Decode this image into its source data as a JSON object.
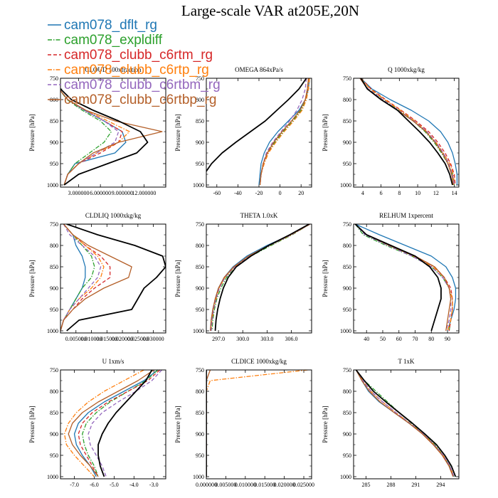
{
  "chart_data": {
    "title": "Large-scale VAR at205E,20N",
    "type": "line",
    "legend": [
      {
        "name": "cam078_dflt_rg",
        "color": "#1f77b4",
        "dash": "solid"
      },
      {
        "name": "cam078_expldiff",
        "color": "#2ca02c",
        "dash": "dashdot"
      },
      {
        "name": "cam078_clubb_c6rtm_rg",
        "color": "#d62728",
        "dash": "dashed"
      },
      {
        "name": "cam078_clubb_c6rtp_rg",
        "color": "#ff7f0e",
        "dash": "dashdot"
      },
      {
        "name": "cam078_clubb_c6rtbm_rg",
        "color": "#9467bd",
        "dash": "dashed"
      },
      {
        "name": "cam078_clubb_c6rtbp_rg",
        "color": "#b45f28",
        "dash": "solid"
      }
    ],
    "reference_color": "#000000",
    "ylabel": "Pressure [hPa]",
    "pressure_levels": [
      750,
      775,
      800,
      825,
      850,
      875,
      900,
      925,
      950,
      975,
      1000
    ],
    "panels": [
      {
        "title": "CLOUD 100xfraction",
        "xlim": [
          0.5,
          15
        ],
        "xticks": [
          3.0,
          6.0,
          9.0,
          12.0
        ],
        "xticklabels": [
          "3.000000",
          "6.000000",
          "9.000000",
          "12.000000"
        ],
        "yticks": [
          750,
          800,
          850,
          900,
          950,
          1000
        ],
        "reference": [
          0,
          0.5,
          2,
          5,
          8.5,
          11.5,
          12.5,
          11,
          7,
          3,
          1
        ],
        "series": [
          [
            0,
            0.3,
            1.5,
            3.8,
            6.5,
            9,
            9.5,
            8,
            2.5,
            1.5,
            1
          ],
          [
            0,
            0.3,
            1.4,
            3.5,
            6,
            7.5,
            6.5,
            4.5,
            2.5,
            1.5,
            1
          ],
          [
            0,
            0.3,
            1.5,
            3.8,
            6.5,
            9,
            8.5,
            6,
            3,
            1.5,
            1
          ],
          [
            0,
            0.3,
            1.5,
            4,
            7,
            10,
            8.5,
            5.5,
            3,
            1.5,
            1
          ],
          [
            0,
            0.3,
            1.5,
            3.8,
            6.5,
            8.5,
            8,
            5.5,
            3,
            1.5,
            1
          ],
          [
            0,
            0.3,
            1.5,
            4,
            8,
            14.5,
            8.5,
            5,
            3,
            1.5,
            1
          ]
        ]
      },
      {
        "title": "OMEGA  864xPa/s",
        "xlim": [
          -70,
          30
        ],
        "xticks": [
          -60,
          -40,
          -20,
          0,
          20
        ],
        "xticklabels": [
          "-60",
          "-40",
          "-20",
          "0",
          "20"
        ],
        "yticks": [
          750,
          800,
          850,
          900,
          950,
          1000
        ],
        "reference": [
          25,
          18,
          8,
          -3,
          -14,
          -28,
          -42,
          -55,
          -65,
          -72,
          -78
        ],
        "series": [
          [
            28,
            27,
            24,
            18,
            8,
            -2,
            -10,
            -15,
            -18,
            -19,
            -20
          ],
          [
            28,
            27,
            25,
            20,
            12,
            3,
            -5,
            -12,
            -16,
            -18,
            -19
          ],
          [
            27,
            26,
            24,
            19,
            11,
            2,
            -6,
            -12,
            -16,
            -18,
            -19
          ],
          [
            28,
            27,
            25,
            21,
            13,
            4,
            -4,
            -11,
            -15,
            -18,
            -19
          ],
          [
            25,
            24,
            21,
            16,
            9,
            1,
            -7,
            -13,
            -16,
            -18,
            -19
          ],
          [
            27,
            26,
            24,
            19,
            11,
            2,
            -6,
            -12,
            -16,
            -18,
            -19
          ]
        ]
      },
      {
        "title": "Q  1000xkg/kg",
        "xlim": [
          3,
          14.5
        ],
        "xticks": [
          4,
          6,
          8,
          10,
          12,
          14
        ],
        "xticklabels": [
          "4",
          "6",
          "8",
          "10",
          "12",
          "14"
        ],
        "yticks": [
          750,
          800,
          850,
          900,
          950,
          1000
        ],
        "reference": [
          3.8,
          4.5,
          6,
          7.8,
          9,
          10.2,
          11.3,
          12.2,
          13,
          13.5,
          13.8
        ],
        "series": [
          [
            3.8,
            5,
            7,
            9.3,
            11.2,
            12.5,
            13.3,
            13.8,
            14.1,
            14.3,
            14.3
          ],
          [
            3.8,
            4.8,
            6.3,
            8,
            9.5,
            10.8,
            11.8,
            12.6,
            13.3,
            13.8,
            14
          ],
          [
            3.8,
            4.9,
            6.5,
            8.2,
            9.8,
            11.2,
            12.2,
            13,
            13.6,
            14,
            14.1
          ],
          [
            3.8,
            4.8,
            6.4,
            8.1,
            9.7,
            11,
            12,
            12.8,
            13.5,
            13.9,
            14
          ],
          [
            3.7,
            4.6,
            6.2,
            7.9,
            9.6,
            11,
            12,
            12.8,
            13.4,
            13.8,
            14
          ],
          [
            3.7,
            4.5,
            6,
            7.8,
            9.5,
            10.9,
            11.9,
            12.7,
            13.3,
            13.7,
            13.9
          ]
        ]
      },
      {
        "title": "CLDLIQ  1000xkg/kg",
        "xlim": [
          0,
          0.034
        ],
        "xticks": [
          0.005,
          0.01,
          0.015,
          0.02,
          0.025,
          0.03
        ],
        "xticklabels": [
          "0.005000",
          "0.010000",
          "0.015000",
          "0.020000",
          "0.025000",
          "0.030000"
        ],
        "yticks": [
          750,
          800,
          850,
          900,
          950,
          1000
        ],
        "reference": [
          0.002,
          0.012,
          0.024,
          0.033,
          0.034,
          0.031,
          0.027,
          0.025,
          0.023,
          0.006,
          0.002
        ],
        "series": [
          [
            0.001,
            0.004,
            0.005,
            0.007,
            0.008,
            0.008,
            0.007,
            0.005,
            0.003,
            0.001,
            0
          ],
          [
            0.001,
            0.004,
            0.007,
            0.01,
            0.011,
            0.01,
            0.007,
            0.005,
            0.003,
            0.001,
            0
          ],
          [
            0.001,
            0.004,
            0.008,
            0.013,
            0.016,
            0.016,
            0.011,
            0.007,
            0.004,
            0.001,
            0
          ],
          [
            0.001,
            0.004,
            0.008,
            0.012,
            0.014,
            0.013,
            0.01,
            0.006,
            0.003,
            0.001,
            0
          ],
          [
            0.001,
            0.003,
            0.007,
            0.011,
            0.013,
            0.012,
            0.009,
            0.006,
            0.003,
            0.001,
            0
          ],
          [
            0.001,
            0.004,
            0.009,
            0.016,
            0.023,
            0.022,
            0.014,
            0.008,
            0.004,
            0.001,
            0
          ]
        ]
      },
      {
        "title": "THETA  1.0xK",
        "xlim": [
          295.5,
          308.5
        ],
        "xticks": [
          297,
          300,
          303,
          306
        ],
        "xticklabels": [
          "297.0",
          "300.0",
          "303.0",
          "306.0"
        ],
        "yticks": [
          750,
          800,
          850,
          900,
          950,
          1000
        ],
        "reference": [
          308.2,
          305.8,
          303.2,
          301,
          299.2,
          298.2,
          297.6,
          297.2,
          296.9,
          296.7,
          296.6
        ],
        "series": [
          [
            308.3,
            305.9,
            303,
            300.5,
            298.8,
            297.7,
            297,
            296.6,
            296.3,
            296.1,
            296
          ],
          [
            308.3,
            306.1,
            303.5,
            301,
            299.2,
            298,
            297.3,
            296.8,
            296.5,
            296.3,
            296.2
          ],
          [
            308.3,
            306,
            303.3,
            300.8,
            299,
            297.8,
            297.1,
            296.7,
            296.4,
            296.2,
            296.1
          ],
          [
            308.3,
            306,
            303.3,
            300.8,
            299,
            297.8,
            297.1,
            296.7,
            296.4,
            296.2,
            296.1
          ],
          [
            308.3,
            306,
            303.3,
            300.8,
            299,
            297.8,
            297.1,
            296.7,
            296.4,
            296.2,
            296.1
          ],
          [
            308.3,
            305.9,
            303.2,
            300.7,
            298.9,
            297.7,
            297,
            296.6,
            296.3,
            296.1,
            296
          ]
        ]
      },
      {
        "title": "RELHUM  1xpercent",
        "xlim": [
          32,
          97
        ],
        "xticks": [
          40,
          50,
          60,
          70,
          80,
          90
        ],
        "xticklabels": [
          "40",
          "50",
          "60",
          "70",
          "80",
          "90"
        ],
        "yticks": [
          750,
          800,
          850,
          900,
          950,
          1000
        ],
        "reference": [
          33,
          40,
          55,
          70,
          79,
          84,
          86,
          86,
          84,
          82,
          80
        ],
        "series": [
          [
            33,
            48,
            64,
            80,
            89,
            93,
            95,
            95,
            94,
            92,
            90
          ],
          [
            33,
            38,
            52,
            68,
            80,
            87,
            91,
            93,
            93,
            92,
            91
          ],
          [
            33,
            40,
            55,
            70,
            82,
            88,
            92,
            93,
            93,
            92,
            91
          ],
          [
            33,
            40,
            54,
            69,
            81,
            88,
            91,
            93,
            93,
            92,
            90
          ],
          [
            33,
            39,
            53,
            68,
            80,
            87,
            91,
            92,
            92,
            91,
            89
          ],
          [
            33,
            40,
            54,
            70,
            82,
            88,
            91,
            92,
            91,
            90,
            89
          ]
        ]
      },
      {
        "title": "U  1xm/s",
        "xlim": [
          -7.7,
          -2.4
        ],
        "xticks": [
          -7,
          -6,
          -5,
          -4,
          -3
        ],
        "xticklabels": [
          "-7.0",
          "-6.0",
          "-5.0",
          "-4.0",
          "-3.0"
        ],
        "yticks": [
          750,
          800,
          850,
          900,
          950,
          1000
        ],
        "reference": [
          -3.1,
          -3.4,
          -3.9,
          -4.4,
          -4.9,
          -5.3,
          -5.6,
          -5.8,
          -5.8,
          -5.7,
          -5.5
        ],
        "series": [
          [
            -2.8,
            -3.5,
            -4.5,
            -5.5,
            -6.3,
            -6.8,
            -7,
            -6.9,
            -6.6,
            -6.2,
            -5.9
          ],
          [
            -2.8,
            -3.4,
            -4.3,
            -5.2,
            -5.9,
            -6.4,
            -6.6,
            -6.5,
            -6.3,
            -6,
            -5.8
          ],
          [
            -2.7,
            -3.3,
            -4.3,
            -5.3,
            -6.1,
            -6.6,
            -6.8,
            -6.7,
            -6.4,
            -6.1,
            -5.8
          ],
          [
            -3.5,
            -4.5,
            -5.5,
            -6.3,
            -6.9,
            -7.3,
            -7.5,
            -7.4,
            -7,
            -6.5,
            -6
          ],
          [
            -2.6,
            -3.1,
            -3.9,
            -4.8,
            -5.6,
            -6.1,
            -6.3,
            -6.2,
            -5.9,
            -5.6,
            -5.4
          ],
          [
            -3,
            -3.8,
            -4.8,
            -5.8,
            -6.6,
            -7.1,
            -7.3,
            -7.1,
            -6.7,
            -6.2,
            -5.8
          ]
        ]
      },
      {
        "title": "CLDICE  1000xkg/kg",
        "xlim": [
          0,
          0.027
        ],
        "xticks": [
          0,
          0.005,
          0.01,
          0.015,
          0.02,
          0.025
        ],
        "xticklabels": [
          "0.000000",
          "0.005000",
          "0.010000",
          "0.015000",
          "0.020000",
          "0.025000"
        ],
        "yticks": [
          750,
          800,
          850,
          900,
          950,
          1000
        ],
        "reference": [
          0,
          0,
          0,
          0,
          0,
          0,
          0,
          0,
          0,
          0,
          0
        ],
        "series": [
          [
            0,
            0,
            0,
            0,
            0,
            0,
            0,
            0,
            0,
            0,
            0
          ],
          [
            0,
            0,
            0,
            0,
            0,
            0,
            0,
            0,
            0,
            0,
            0
          ],
          [
            0,
            0,
            0,
            0,
            0,
            0,
            0,
            0,
            0,
            0,
            0
          ],
          [
            0.026,
            0.001,
            0,
            0,
            0,
            0,
            0,
            0,
            0,
            0,
            0
          ],
          [
            0,
            0,
            0,
            0,
            0,
            0,
            0,
            0,
            0,
            0,
            0
          ],
          [
            0.001,
            0,
            0,
            0,
            0,
            0,
            0,
            0,
            0,
            0,
            0
          ]
        ]
      },
      {
        "title": "T  1xK",
        "xlim": [
          283.5,
          296.2
        ],
        "xticks": [
          285,
          288,
          291,
          294
        ],
        "xticklabels": [
          "285",
          "288",
          "291",
          "294"
        ],
        "yticks": [
          750,
          800,
          850,
          900,
          950,
          1000
        ],
        "reference": [
          283.8,
          284.8,
          285.9,
          287.4,
          289,
          290.6,
          292.1,
          293.5,
          294.5,
          295.3,
          295.8
        ],
        "series": [
          [
            283.8,
            284.5,
            285.3,
            286.6,
            288.4,
            290.2,
            291.9,
            293.2,
            294.3,
            295.1,
            295.6
          ],
          [
            283.8,
            284.8,
            286.2,
            287.6,
            289,
            290.5,
            292,
            293.3,
            294.3,
            295.1,
            295.6
          ],
          [
            283.8,
            284.6,
            285.6,
            287,
            288.6,
            290.3,
            291.9,
            293.2,
            294.3,
            295.1,
            295.6
          ],
          [
            283.8,
            284.6,
            285.6,
            287,
            288.6,
            290.3,
            291.9,
            293.2,
            294.3,
            295.1,
            295.6
          ],
          [
            283.8,
            284.6,
            285.6,
            287,
            288.6,
            290.3,
            291.9,
            293.2,
            294.3,
            295.1,
            295.6
          ],
          [
            283.8,
            284.5,
            285.4,
            286.7,
            288.4,
            290.2,
            291.8,
            293.1,
            294.2,
            295,
            295.5
          ]
        ]
      }
    ]
  }
}
